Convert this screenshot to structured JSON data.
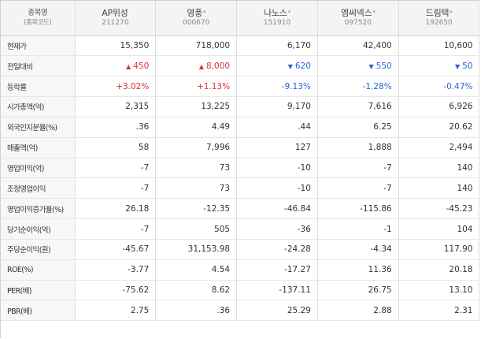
{
  "header": {
    "label_title": "종목명",
    "label_sub": "(종목코드)",
    "stocks": [
      {
        "name": "AP위성",
        "code": "211270",
        "star": ""
      },
      {
        "name": "영풍",
        "code": "000670",
        "star": "*"
      },
      {
        "name": "나노스",
        "code": "151910",
        "star": "*"
      },
      {
        "name": "엠씨넥스",
        "code": "097520",
        "star": "*"
      },
      {
        "name": "드림텍",
        "code": "192650",
        "star": "*"
      }
    ]
  },
  "rows": [
    {
      "label": "현재가",
      "cells": [
        {
          "text": "15,350",
          "tone": ""
        },
        {
          "text": "718,000",
          "tone": ""
        },
        {
          "text": "6,170",
          "tone": ""
        },
        {
          "text": "42,400",
          "tone": ""
        },
        {
          "text": "10,600",
          "tone": ""
        }
      ]
    },
    {
      "label": "전일대비",
      "cells": [
        {
          "text": "450",
          "tone": "up",
          "arrow": "▲"
        },
        {
          "text": "8,000",
          "tone": "up",
          "arrow": "▲"
        },
        {
          "text": "620",
          "tone": "down",
          "arrow": "▼"
        },
        {
          "text": "550",
          "tone": "down",
          "arrow": "▼"
        },
        {
          "text": "50",
          "tone": "down",
          "arrow": "▼"
        }
      ]
    },
    {
      "label": "등락률",
      "cells": [
        {
          "text": "+3.02%",
          "tone": "up"
        },
        {
          "text": "+1.13%",
          "tone": "up"
        },
        {
          "text": "-9.13%",
          "tone": "down"
        },
        {
          "text": "-1.28%",
          "tone": "down"
        },
        {
          "text": "-0.47%",
          "tone": "down"
        }
      ]
    },
    {
      "label": "시가총액(억)",
      "cells": [
        {
          "text": "2,315",
          "tone": ""
        },
        {
          "text": "13,225",
          "tone": ""
        },
        {
          "text": "9,170",
          "tone": ""
        },
        {
          "text": "7,616",
          "tone": ""
        },
        {
          "text": "6,926",
          "tone": ""
        }
      ]
    },
    {
      "label": "외국인지분율(%)",
      "cells": [
        {
          "text": ".36",
          "tone": ""
        },
        {
          "text": "4.49",
          "tone": ""
        },
        {
          "text": ".44",
          "tone": ""
        },
        {
          "text": "6.25",
          "tone": ""
        },
        {
          "text": "20.62",
          "tone": ""
        }
      ]
    },
    {
      "label": "매출액(억)",
      "cells": [
        {
          "text": "58",
          "tone": ""
        },
        {
          "text": "7,996",
          "tone": ""
        },
        {
          "text": "127",
          "tone": ""
        },
        {
          "text": "1,888",
          "tone": ""
        },
        {
          "text": "2,494",
          "tone": ""
        }
      ]
    },
    {
      "label": "영업이익(억)",
      "cells": [
        {
          "text": "-7",
          "tone": ""
        },
        {
          "text": "73",
          "tone": ""
        },
        {
          "text": "-10",
          "tone": ""
        },
        {
          "text": "-7",
          "tone": ""
        },
        {
          "text": "140",
          "tone": ""
        }
      ]
    },
    {
      "label": "조정영업이익",
      "cells": [
        {
          "text": "-7",
          "tone": ""
        },
        {
          "text": "73",
          "tone": ""
        },
        {
          "text": "-10",
          "tone": ""
        },
        {
          "text": "-7",
          "tone": ""
        },
        {
          "text": "140",
          "tone": ""
        }
      ]
    },
    {
      "label": "영업이익증가율(%)",
      "cells": [
        {
          "text": "26.18",
          "tone": ""
        },
        {
          "text": "-12.35",
          "tone": ""
        },
        {
          "text": "-46.84",
          "tone": ""
        },
        {
          "text": "-115.86",
          "tone": ""
        },
        {
          "text": "-45.23",
          "tone": ""
        }
      ]
    },
    {
      "label": "당기순이익(억)",
      "cells": [
        {
          "text": "-7",
          "tone": ""
        },
        {
          "text": "505",
          "tone": ""
        },
        {
          "text": "-36",
          "tone": ""
        },
        {
          "text": "-1",
          "tone": ""
        },
        {
          "text": "104",
          "tone": ""
        }
      ]
    },
    {
      "label": "주당순이익(원)",
      "cells": [
        {
          "text": "-45.67",
          "tone": ""
        },
        {
          "text": "31,153.98",
          "tone": ""
        },
        {
          "text": "-24.28",
          "tone": ""
        },
        {
          "text": "-4.34",
          "tone": ""
        },
        {
          "text": "117.90",
          "tone": ""
        }
      ]
    },
    {
      "label": "ROE(%)",
      "cells": [
        {
          "text": "-3.77",
          "tone": ""
        },
        {
          "text": "4.54",
          "tone": ""
        },
        {
          "text": "-17.27",
          "tone": ""
        },
        {
          "text": "11.36",
          "tone": ""
        },
        {
          "text": "20.18",
          "tone": ""
        }
      ]
    },
    {
      "label": "PER(배)",
      "cells": [
        {
          "text": "-75.62",
          "tone": ""
        },
        {
          "text": "8.62",
          "tone": ""
        },
        {
          "text": "-137.11",
          "tone": ""
        },
        {
          "text": "26.75",
          "tone": ""
        },
        {
          "text": "13.10",
          "tone": ""
        }
      ]
    },
    {
      "label": "PBR(배)",
      "cells": [
        {
          "text": "2.75",
          "tone": ""
        },
        {
          "text": ".36",
          "tone": ""
        },
        {
          "text": "25.29",
          "tone": ""
        },
        {
          "text": "2.88",
          "tone": ""
        },
        {
          "text": "2.31",
          "tone": ""
        }
      ]
    }
  ],
  "colors": {
    "up": "#e03030",
    "down": "#2a62d8"
  }
}
